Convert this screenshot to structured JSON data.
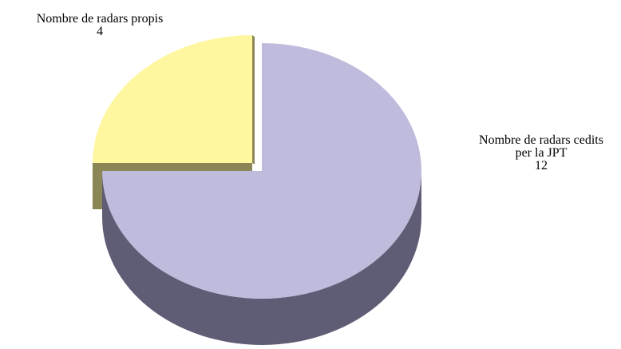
{
  "chart_data": {
    "type": "pie",
    "style": "3d-exploded",
    "title": "",
    "slices": [
      {
        "label_lines": [
          "Nombre de radars propis"
        ],
        "value": 4,
        "value_label": "4",
        "color": "#FFF6A0",
        "side_color": "#8B8656"
      },
      {
        "label_lines": [
          "Nombre de radars cedits",
          "per la JPT"
        ],
        "value": 12,
        "value_label": "12",
        "color": "#BEBBDC",
        "side_color": "#5F5C75"
      }
    ],
    "legend": "none"
  }
}
